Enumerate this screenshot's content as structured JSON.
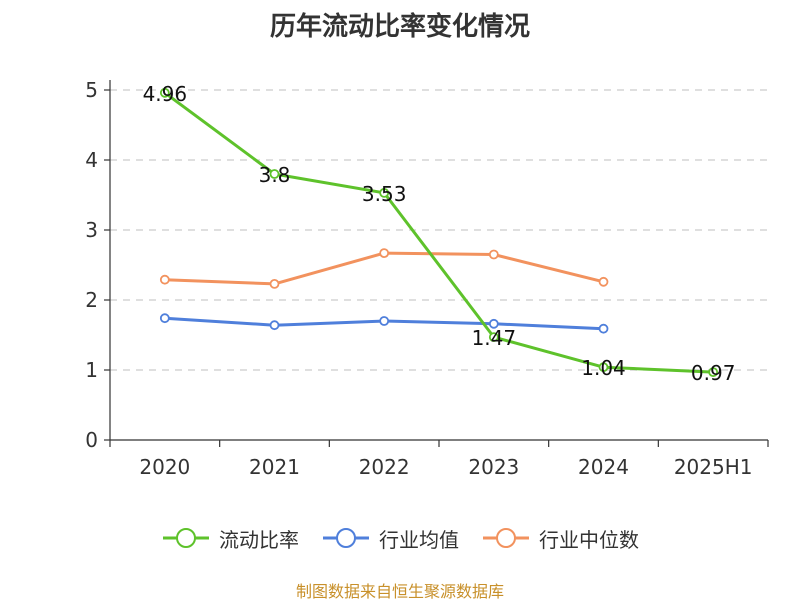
{
  "title": "历年流动比率变化情况",
  "source_note": "制图数据来自恒生聚源数据库",
  "colors": {
    "流动比率": "#5ec22b",
    "行业均值": "#4f7fdb",
    "行业中位数": "#f2925e",
    "grid": "#cccccc",
    "axis": "#333333",
    "source_text": "#c8902a"
  },
  "chart_data": {
    "type": "line",
    "title": "历年流动比率变化情况",
    "categories": [
      "2020",
      "2021",
      "2022",
      "2023",
      "2024",
      "2025H1"
    ],
    "ylim": [
      0,
      5
    ],
    "yticks": [
      "0",
      "1",
      "2",
      "3",
      "4",
      "5"
    ],
    "grid": "horizontal-dashed",
    "legend_position": "bottom",
    "series": [
      {
        "name": "流动比率",
        "values": [
          4.96,
          3.8,
          3.53,
          1.47,
          1.04,
          0.97
        ],
        "data_labels": [
          "4.96",
          "3.8",
          "3.53",
          "1.47",
          "1.04",
          "0.97"
        ]
      },
      {
        "name": "行业均值",
        "values": [
          1.74,
          1.64,
          1.7,
          1.66,
          1.59,
          null
        ]
      },
      {
        "name": "行业中位数",
        "values": [
          2.29,
          2.23,
          2.67,
          2.65,
          2.26,
          null
        ]
      }
    ]
  }
}
